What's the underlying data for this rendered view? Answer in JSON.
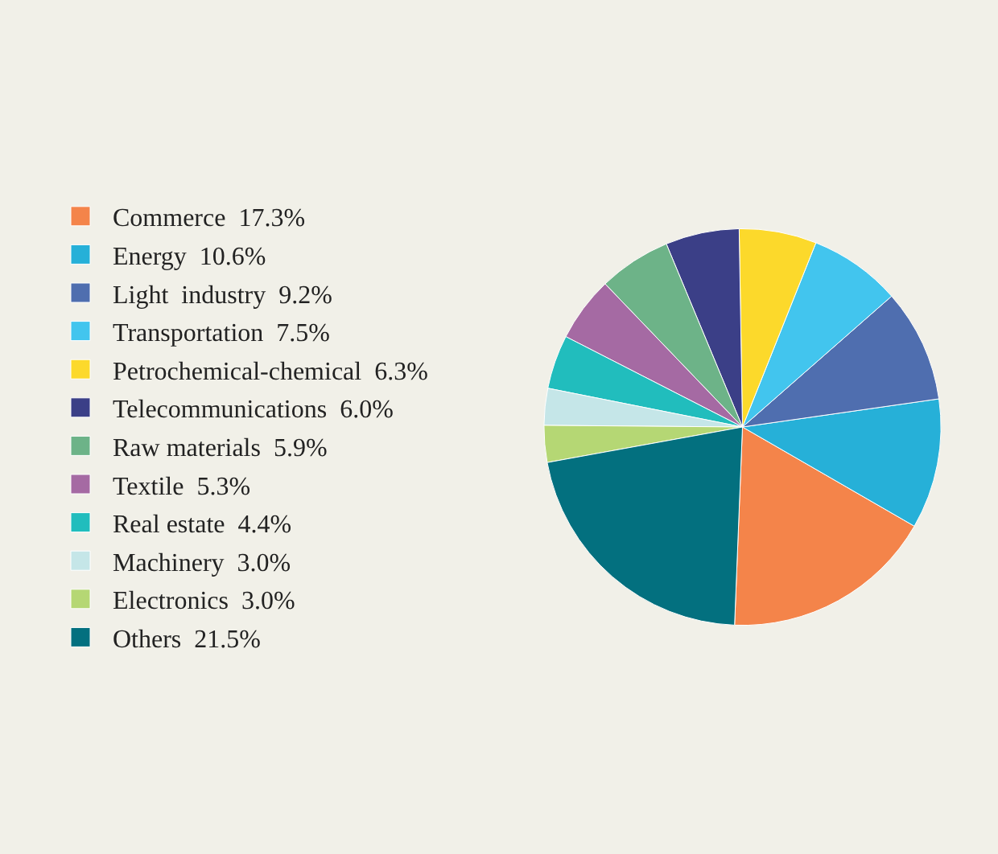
{
  "chart_data": {
    "type": "pie",
    "categories": [
      "Commerce",
      "Energy",
      "Light  industry",
      "Transportation",
      "Petrochemical-chemical",
      "Telecommunications",
      "Raw materials",
      "Textile",
      "Real estate",
      "Machinery",
      "Electronics",
      "Others"
    ],
    "values": [
      17.3,
      10.6,
      9.2,
      7.5,
      6.3,
      6.0,
      5.9,
      5.3,
      4.4,
      3.0,
      3.0,
      21.5
    ],
    "value_labels": [
      "17.3%",
      "10.6%",
      "9.2%",
      "7.5%",
      "6.3%",
      "6.0%",
      "5.9%",
      "5.3%",
      "4.4%",
      "3.0%",
      "3.0%",
      "21.5%"
    ],
    "colors": [
      "#f4844a",
      "#26b0d8",
      "#4f6eaf",
      "#42c5ee",
      "#fcd92b",
      "#3b3f87",
      "#6db388",
      "#a56aa3",
      "#21bdbd",
      "#c5e6e8",
      "#b5d774",
      "#03707f"
    ],
    "legend": "left"
  }
}
